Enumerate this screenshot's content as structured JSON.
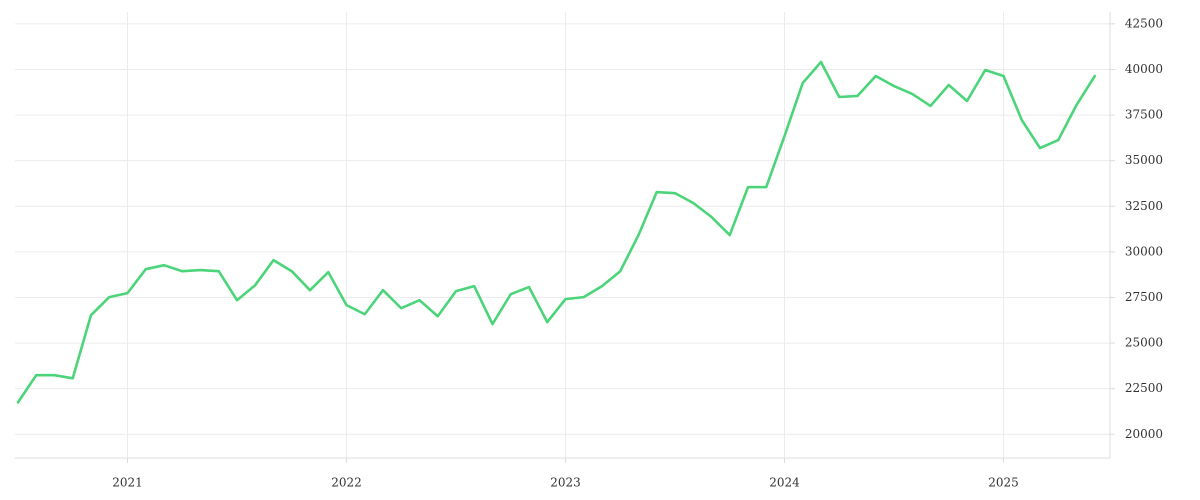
{
  "chart_data": {
    "type": "line",
    "categories": [
      null,
      null,
      null,
      null,
      null,
      null,
      "2021",
      null,
      null,
      null,
      null,
      null,
      null,
      null,
      null,
      null,
      null,
      null,
      "2022",
      null,
      null,
      null,
      null,
      null,
      null,
      null,
      null,
      null,
      null,
      null,
      "2023",
      null,
      null,
      null,
      null,
      null,
      null,
      null,
      null,
      null,
      null,
      null,
      "2024",
      null,
      null,
      null,
      null,
      null,
      null,
      null,
      null,
      null,
      null,
      null,
      "2025",
      null,
      null,
      null,
      null,
      null
    ],
    "series": [
      {
        "color": "#4cd47a",
        "values": [
          21750,
          23240,
          23240,
          23070,
          26530,
          27520,
          27740,
          29050,
          29270,
          28940,
          29000,
          28940,
          27350,
          28180,
          29550,
          28940,
          27900,
          28890,
          27080,
          26580,
          27900,
          26910,
          27350,
          26470,
          27850,
          28120,
          26040,
          27680,
          28070,
          26150,
          27410,
          27520,
          28120,
          28940,
          30920,
          33280,
          33220,
          32680,
          31910,
          30920,
          33550,
          33550,
          36350,
          39260,
          40410,
          38490,
          38550,
          39640,
          39090,
          38660,
          38000,
          39150,
          38270,
          39970,
          39640,
          37230,
          35690,
          36130,
          38050,
          39640
        ]
      }
    ],
    "ylim": [
      18700,
      43150
    ],
    "yticks": [
      20000,
      22500,
      25000,
      27500,
      30000,
      32500,
      35000,
      37500,
      40000,
      42500
    ],
    "grid": true
  }
}
